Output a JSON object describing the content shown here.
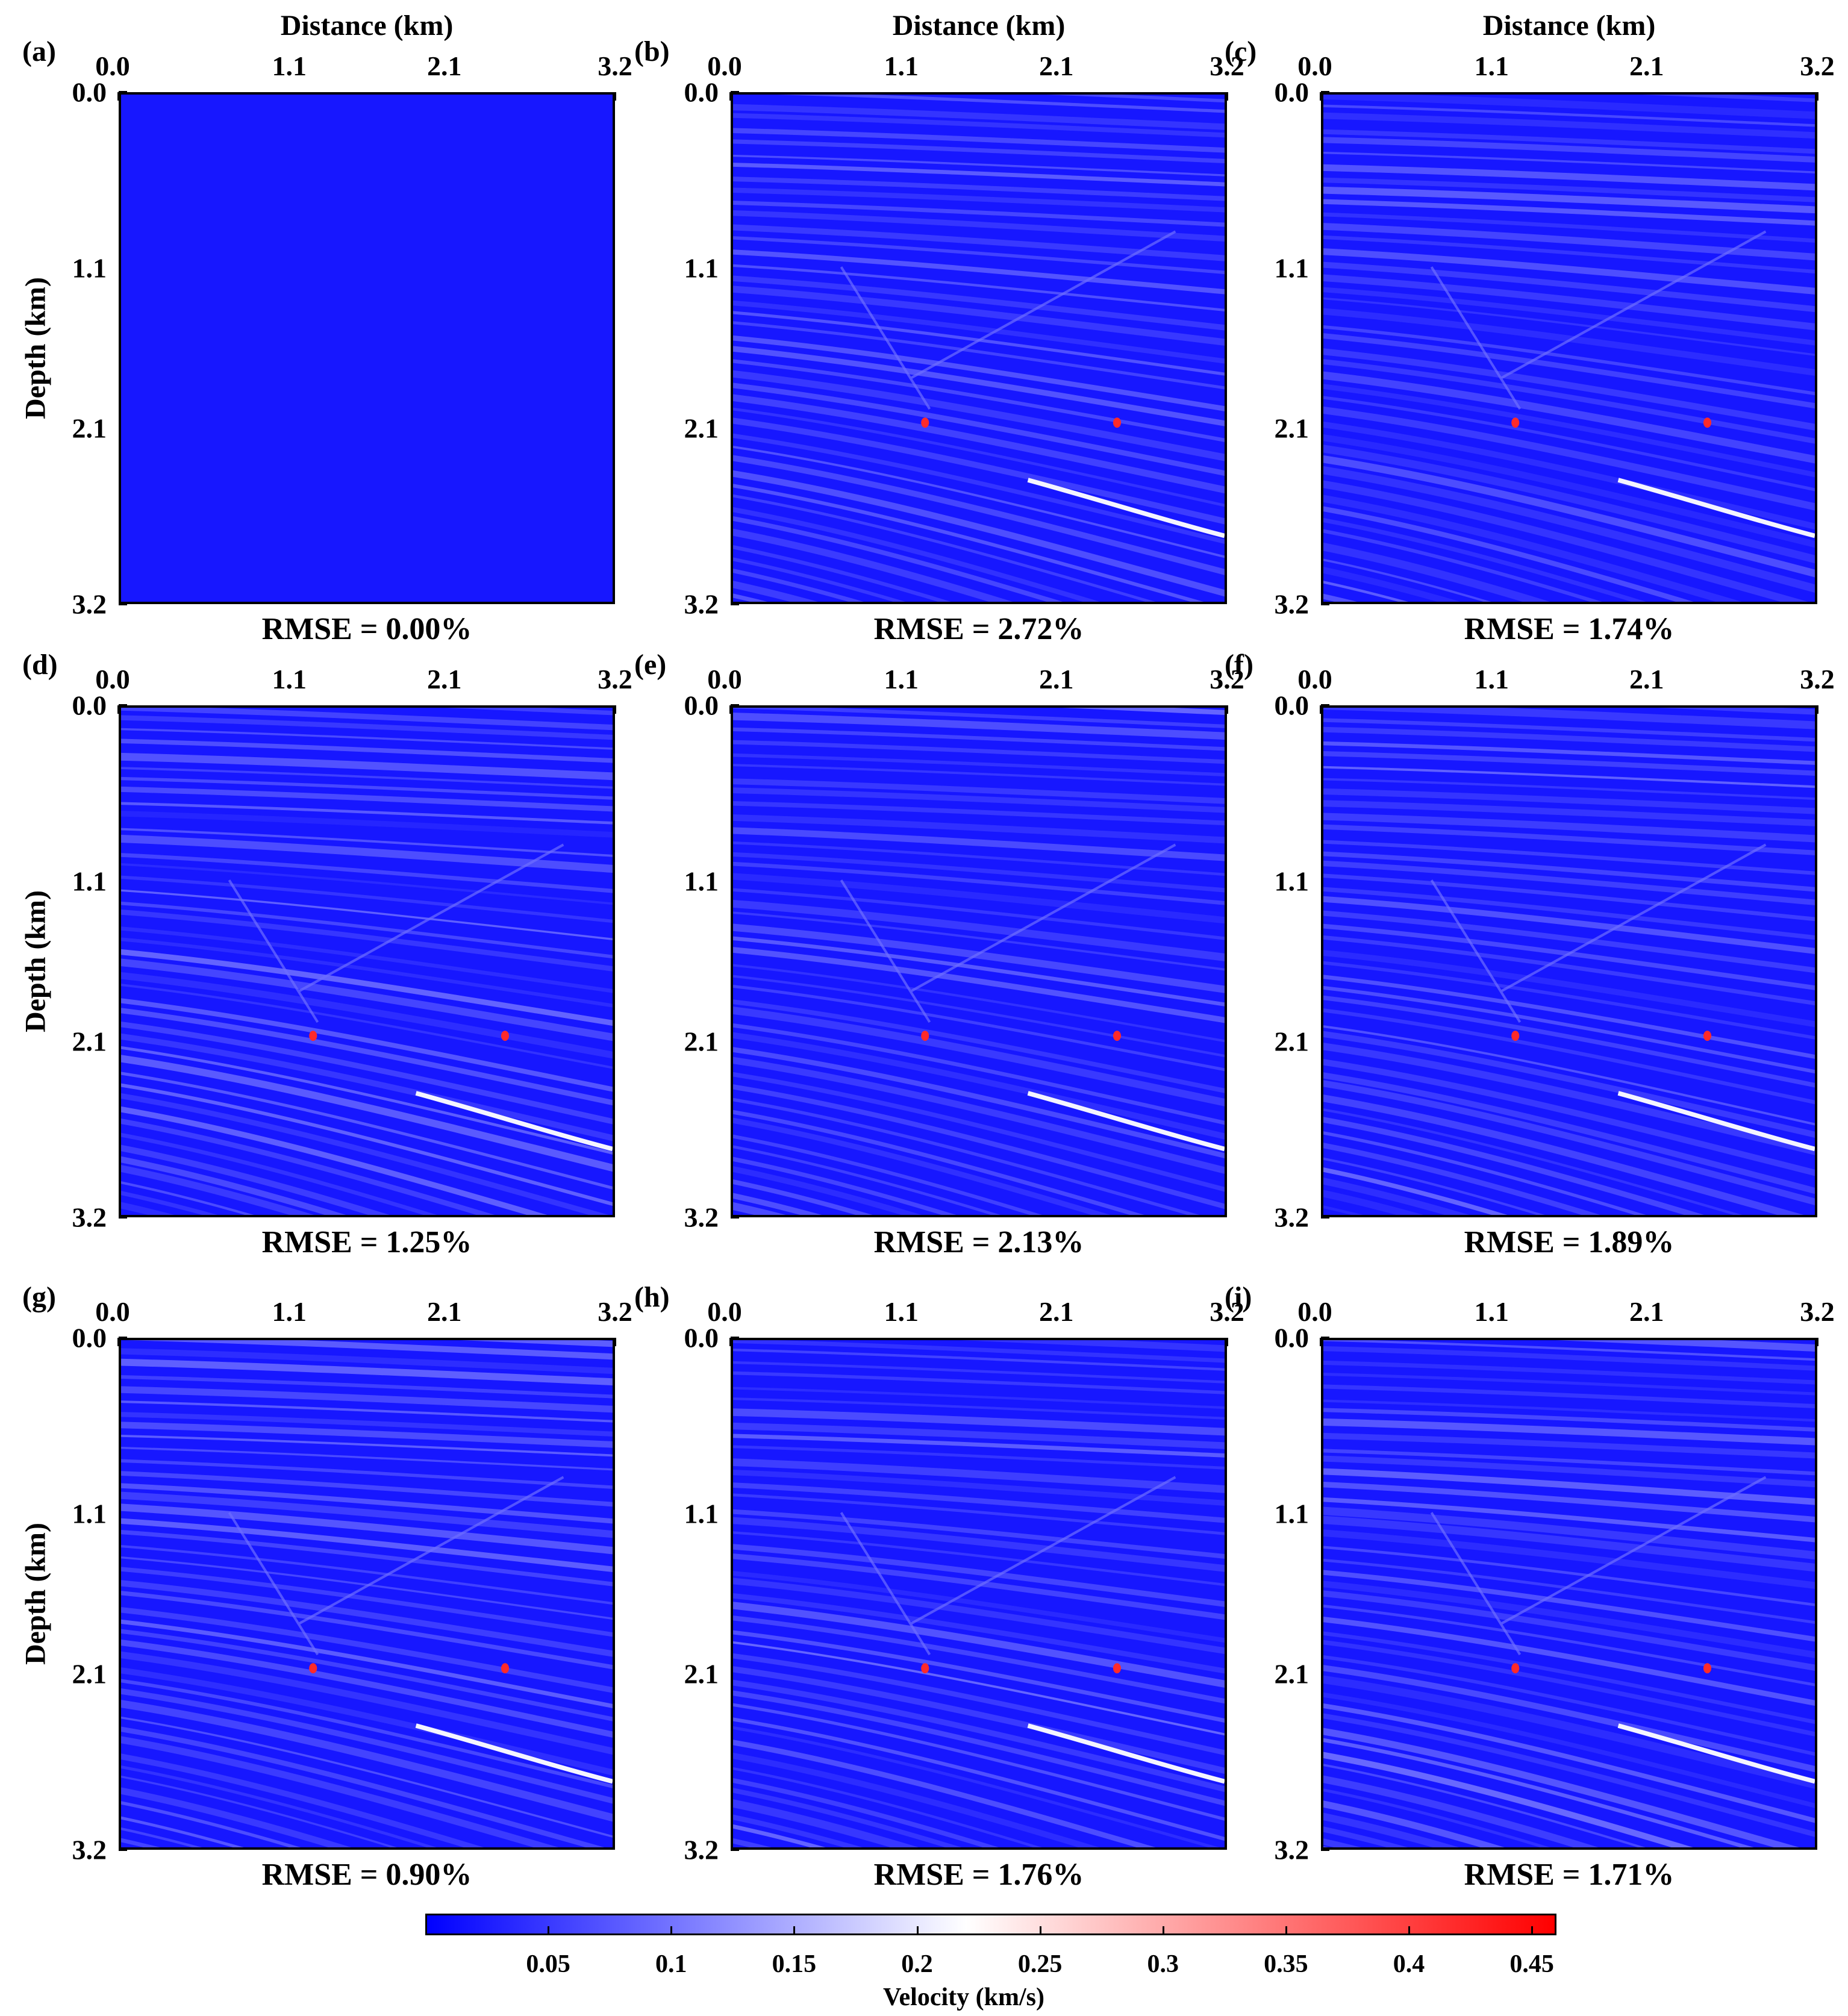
{
  "figure": {
    "colorbar": {
      "label": "Velocity (km/s)",
      "ticks": [
        "0.05",
        "0.1",
        "0.15",
        "0.2",
        "0.25",
        "0.3",
        "0.35",
        "0.4",
        "0.45"
      ],
      "range": [
        0,
        0.46
      ],
      "colors": [
        "#0000ff",
        "#ffffff",
        "#ff0000"
      ]
    }
  },
  "chart_data": [
    {
      "type": "heatmap",
      "panel": "(a)",
      "rmse": "RMSE = 0.00%",
      "xlabel": "Distance (km)",
      "ylabel": "Depth (km)",
      "xticks": [
        "0.0",
        "1.1",
        "2.1",
        "3.2"
      ],
      "yticks": [
        "0.0",
        "1.1",
        "2.1",
        "3.2"
      ],
      "xlim": [
        0,
        3.2
      ],
      "ylim": [
        0,
        3.2
      ],
      "diffractors": []
    },
    {
      "type": "heatmap",
      "panel": "(b)",
      "rmse": "RMSE = 2.72%",
      "xlabel": "Distance (km)",
      "ylabel": "",
      "xticks": [
        "0.0",
        "1.1",
        "2.1",
        "3.2"
      ],
      "yticks": [
        "0.0",
        "1.1",
        "2.1",
        "3.2"
      ],
      "xlim": [
        0,
        3.2
      ],
      "ylim": [
        0,
        3.2
      ],
      "diffractors": [
        [
          1.25,
          2.07
        ],
        [
          2.5,
          2.07
        ]
      ]
    },
    {
      "type": "heatmap",
      "panel": "(c)",
      "rmse": "RMSE = 1.74%",
      "xlabel": "Distance (km)",
      "ylabel": "",
      "xticks": [
        "0.0",
        "1.1",
        "2.1",
        "3.2"
      ],
      "yticks": [
        "0.0",
        "1.1",
        "2.1",
        "3.2"
      ],
      "xlim": [
        0,
        3.2
      ],
      "ylim": [
        0,
        3.2
      ],
      "diffractors": [
        [
          1.25,
          2.07
        ],
        [
          2.5,
          2.07
        ]
      ]
    },
    {
      "type": "heatmap",
      "panel": "(d)",
      "rmse": "RMSE = 1.25%",
      "xlabel": "",
      "ylabel": "Depth (km)",
      "xticks": [
        "0.0",
        "1.1",
        "2.1",
        "3.2"
      ],
      "yticks": [
        "0.0",
        "1.1",
        "2.1",
        "3.2"
      ],
      "xlim": [
        0,
        3.2
      ],
      "ylim": [
        0,
        3.2
      ],
      "diffractors": [
        [
          1.25,
          2.07
        ],
        [
          2.5,
          2.07
        ]
      ]
    },
    {
      "type": "heatmap",
      "panel": "(e)",
      "rmse": "RMSE = 2.13%",
      "xlabel": "",
      "ylabel": "",
      "xticks": [
        "0.0",
        "1.1",
        "2.1",
        "3.2"
      ],
      "yticks": [
        "0.0",
        "1.1",
        "2.1",
        "3.2"
      ],
      "xlim": [
        0,
        3.2
      ],
      "ylim": [
        0,
        3.2
      ],
      "diffractors": [
        [
          1.25,
          2.07
        ],
        [
          2.5,
          2.07
        ]
      ]
    },
    {
      "type": "heatmap",
      "panel": "(f)",
      "rmse": "RMSE = 1.89%",
      "xlabel": "",
      "ylabel": "",
      "xticks": [
        "0.0",
        "1.1",
        "2.1",
        "3.2"
      ],
      "yticks": [
        "0.0",
        "1.1",
        "2.1",
        "3.2"
      ],
      "xlim": [
        0,
        3.2
      ],
      "ylim": [
        0,
        3.2
      ],
      "diffractors": [
        [
          1.25,
          2.07
        ],
        [
          2.5,
          2.07
        ]
      ]
    },
    {
      "type": "heatmap",
      "panel": "(g)",
      "rmse": "RMSE = 0.90%",
      "xlabel": "",
      "ylabel": "Depth (km)",
      "xticks": [
        "0.0",
        "1.1",
        "2.1",
        "3.2"
      ],
      "yticks": [
        "0.0",
        "1.1",
        "2.1",
        "3.2"
      ],
      "xlim": [
        0,
        3.2
      ],
      "ylim": [
        0,
        3.2
      ],
      "diffractors": [
        [
          1.25,
          2.07
        ],
        [
          2.5,
          2.07
        ]
      ]
    },
    {
      "type": "heatmap",
      "panel": "(h)",
      "rmse": "RMSE = 1.76%",
      "xlabel": "",
      "ylabel": "",
      "xticks": [
        "0.0",
        "1.1",
        "2.1",
        "3.2"
      ],
      "yticks": [
        "0.0",
        "1.1",
        "2.1",
        "3.2"
      ],
      "xlim": [
        0,
        3.2
      ],
      "ylim": [
        0,
        3.2
      ],
      "diffractors": [
        [
          1.25,
          2.07
        ],
        [
          2.5,
          2.07
        ]
      ]
    },
    {
      "type": "heatmap",
      "panel": "(i)",
      "rmse": "RMSE = 1.71%",
      "xlabel": "",
      "ylabel": "",
      "xticks": [
        "0.0",
        "1.1",
        "2.1",
        "3.2"
      ],
      "yticks": [
        "0.0",
        "1.1",
        "2.1",
        "3.2"
      ],
      "xlim": [
        0,
        3.2
      ],
      "ylim": [
        0,
        3.2
      ],
      "diffractors": [
        [
          1.25,
          2.07
        ],
        [
          2.5,
          2.07
        ]
      ]
    }
  ]
}
